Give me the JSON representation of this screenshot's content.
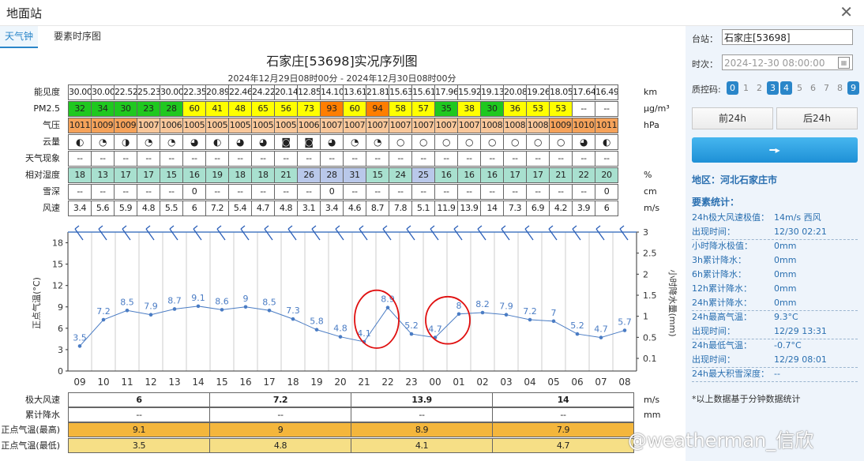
{
  "window": {
    "title": "地面站"
  },
  "tabs": [
    {
      "label": "天气钟"
    },
    {
      "label": "要素时序图"
    }
  ],
  "chart": {
    "title": "石家庄[53698]实况序列图",
    "subtitle": "2024年12月29日08时00分 - 2024年12月30日08时00分"
  },
  "table": {
    "rows": [
      {
        "label": "能见度",
        "unit": "km",
        "kind": "plain",
        "values": [
          "30.00",
          "30.00",
          "22.52",
          "25.23",
          "30.00",
          "22.35",
          "20.89",
          "22.46",
          "24.22",
          "20.14",
          "12.85",
          "14.10",
          "13.61",
          "21.81",
          "15.63",
          "15.61",
          "17.96",
          "15.92",
          "19.13",
          "20.08",
          "19.26",
          "18.05",
          "17.64",
          "16.49"
        ]
      },
      {
        "label": "PM2.5",
        "unit": "μg/m³",
        "kind": "pm",
        "values": [
          "32",
          "34",
          "30",
          "23",
          "28",
          "60",
          "41",
          "48",
          "65",
          "56",
          "73",
          "93",
          "60",
          "94",
          "58",
          "57",
          "35",
          "38",
          "30",
          "36",
          "53",
          "53",
          "--",
          "--"
        ]
      },
      {
        "label": "气压",
        "unit": "hPa",
        "kind": "press",
        "values": [
          "1011",
          "1009",
          "1009",
          "1007",
          "1006",
          "1005",
          "1005",
          "1005",
          "1005",
          "1005",
          "1006",
          "1007",
          "1007",
          "1007",
          "1007",
          "1007",
          "1007",
          "1007",
          "1008",
          "1008",
          "1008",
          "1009",
          "1010",
          "1011"
        ]
      },
      {
        "label": "云量",
        "unit": "",
        "kind": "sym",
        "values": [
          "◐",
          "◔",
          "◑",
          "◔",
          "◔",
          "◕",
          "◐",
          "◕",
          "◕",
          "◙",
          "◙",
          "◕",
          "◔",
          "◔",
          "○",
          "○",
          "○",
          "○",
          "○",
          "○",
          "○",
          "○",
          "◕",
          "◐"
        ]
      },
      {
        "label": "天气现象",
        "unit": "",
        "kind": "plain",
        "values": [
          "--",
          "--",
          "--",
          "--",
          "--",
          "--",
          "--",
          "--",
          "--",
          "--",
          "--",
          "--",
          "--",
          "--",
          "--",
          "--",
          "--",
          "--",
          "--",
          "--",
          "--",
          "--",
          "--",
          "--"
        ]
      },
      {
        "label": "相对湿度",
        "unit": "%",
        "kind": "rh",
        "values": [
          "18",
          "13",
          "17",
          "17",
          "15",
          "16",
          "19",
          "18",
          "18",
          "21",
          "26",
          "28",
          "31",
          "15",
          "24",
          "25",
          "16",
          "16",
          "16",
          "17",
          "17",
          "21",
          "22",
          "20"
        ]
      },
      {
        "label": "雪深",
        "unit": "cm",
        "kind": "plain",
        "values": [
          "--",
          "--",
          "--",
          "--",
          "--",
          "0",
          "--",
          "--",
          "--",
          "--",
          "--",
          "0",
          "--",
          "--",
          "--",
          "--",
          "--",
          "--",
          "--",
          "--",
          "--",
          "--",
          "--",
          "0"
        ]
      },
      {
        "label": "风速",
        "unit": "m/s",
        "kind": "plain",
        "values": [
          "3.4",
          "5.6",
          "5.9",
          "4.8",
          "5.5",
          "6",
          "7.2",
          "5.4",
          "4.7",
          "4.8",
          "3.1",
          "3.4",
          "4.6",
          "8.7",
          "7.8",
          "5.1",
          "11.9",
          "13.9",
          "14",
          "7.3",
          "6.9",
          "4.2",
          "3.9",
          "6"
        ]
      }
    ]
  },
  "chart_data": {
    "type": "line",
    "x": [
      "09",
      "10",
      "11",
      "12",
      "13",
      "14",
      "15",
      "16",
      "17",
      "18",
      "19",
      "20",
      "21",
      "22",
      "23",
      "00",
      "01",
      "02",
      "03",
      "04",
      "05",
      "06",
      "07",
      "08"
    ],
    "series": [
      {
        "name": "正点气温",
        "values": [
          3.5,
          7.2,
          8.5,
          7.9,
          8.7,
          9.1,
          8.6,
          9,
          8.5,
          7.3,
          5.8,
          4.8,
          4.1,
          8.9,
          5.2,
          4.7,
          8,
          8.2,
          7.9,
          7.2,
          7,
          5.2,
          4.7,
          5.7
        ]
      }
    ],
    "ylabel": "正点气温(°C)",
    "y2label": "小时降水量(mm)",
    "ylim": [
      0,
      19.5
    ],
    "yticks": [
      0,
      3,
      6,
      9,
      12,
      15,
      18
    ],
    "y2ticks": [
      "0.1",
      "0.5",
      "1",
      "1.5",
      "2",
      "2.5",
      "3"
    ],
    "grid": "vertical",
    "line_color": "#4a7cc4",
    "annotation_color": "#e01010"
  },
  "bottom_table": {
    "rows": [
      {
        "label": "极大风速",
        "unit": "m/s",
        "kind": "plain",
        "values": [
          "6",
          "7.2",
          "13.9",
          "14"
        ]
      },
      {
        "label": "累计降水",
        "unit": "mm",
        "kind": "plain",
        "values": [
          "--",
          "--",
          "--",
          "--"
        ]
      },
      {
        "label": "正点气温(最高)",
        "unit": "",
        "kind": "warm",
        "values": [
          "9.1",
          "9",
          "8.9",
          "7.9"
        ]
      },
      {
        "label": "正点气温(最低)",
        "unit": "",
        "kind": "cool",
        "values": [
          "3.5",
          "4.8",
          "4.1",
          "4.7"
        ]
      }
    ]
  },
  "sidebar": {
    "station_label": "台站：",
    "station_value": "石家庄[53698]",
    "time_label": "时次：",
    "time_placeholder": "2024-12-30 08:00:00",
    "qc_label": "质控码:",
    "qc_codes": [
      {
        "code": "0",
        "on": true
      },
      {
        "code": "1",
        "on": false
      },
      {
        "code": "2",
        "on": false
      },
      {
        "code": "3",
        "on": true
      },
      {
        "code": "4",
        "on": true
      },
      {
        "code": "5",
        "on": false
      },
      {
        "code": "6",
        "on": false
      },
      {
        "code": "7",
        "on": false
      },
      {
        "code": "8",
        "on": false
      },
      {
        "code": "9",
        "on": true
      }
    ],
    "prev_btn": "前24h",
    "next_btn": "后24h",
    "region": "地区：河北石家庄市",
    "stats_title": "要素统计：",
    "stats": [
      {
        "k": "24h极大风速极值：",
        "v": "14m/s 西风"
      },
      {
        "k": "出现时间：",
        "v": "12/30 02:21"
      },
      {
        "k": "小时降水极值：",
        "v": "0mm"
      },
      {
        "k": "3h累计降水：",
        "v": "0mm"
      },
      {
        "k": "6h累计降水：",
        "v": "0mm"
      },
      {
        "k": "12h累计降水：",
        "v": "0mm"
      },
      {
        "k": "24h累计降水：",
        "v": "0mm"
      },
      {
        "k": "24h最高气温：",
        "v": "9.3°C"
      },
      {
        "k": "出现时间：",
        "v": "12/29 13:31"
      },
      {
        "k": "24h最低气温：",
        "v": "-0.7°C"
      },
      {
        "k": "出现时间：",
        "v": "12/29 08:01"
      },
      {
        "k": "24h最大积雪深度：",
        "v": "--"
      }
    ],
    "note": "*以上数据基于分钟数据统计"
  },
  "watermark": "@weatherman_信欣",
  "colors": {
    "pm_green": "#1fc81f",
    "pm_yellow": "#ffff00",
    "pm_orange": "#ff7e00",
    "press": "#f5a25a",
    "press_light": "#f9c79a",
    "rh_blue": "#b9c8ea",
    "rh_teal": "#a8e0cf",
    "warm": "#f4b63c",
    "cool": "#f6df86"
  }
}
